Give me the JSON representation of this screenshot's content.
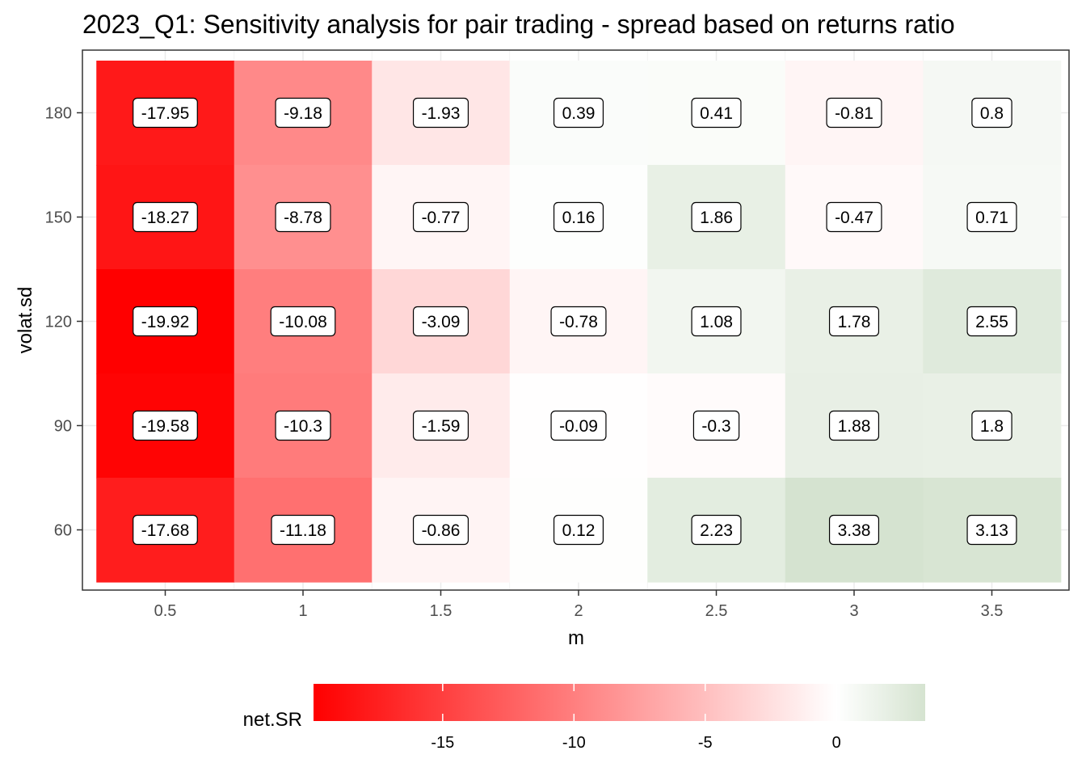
{
  "chart_data": {
    "type": "heatmap",
    "title": "2023_Q1: Sensitivity analysis for pair trading - spread based on returns ratio",
    "xlabel": "m",
    "ylabel": "volat.sd",
    "x": [
      "0.5",
      "1",
      "1.5",
      "2",
      "2.5",
      "3",
      "3.5"
    ],
    "y": [
      "60",
      "90",
      "120",
      "150",
      "180"
    ],
    "values": {
      "180": [
        -17.95,
        -9.18,
        -1.93,
        0.39,
        0.41,
        -0.81,
        0.8
      ],
      "150": [
        -18.27,
        -8.78,
        -0.77,
        0.16,
        1.86,
        -0.47,
        0.71
      ],
      "120": [
        -19.92,
        -10.08,
        -3.09,
        -0.78,
        1.08,
        1.78,
        2.55
      ],
      "90": [
        -19.58,
        -10.3,
        -1.59,
        -0.09,
        -0.3,
        1.88,
        1.8
      ],
      "60": [
        -17.68,
        -11.18,
        -0.86,
        0.12,
        2.23,
        3.38,
        3.13
      ]
    },
    "labels": {
      "180": [
        "-17.95",
        "-9.18",
        "-1.93",
        "0.39",
        "0.41",
        "-0.81",
        "0.8"
      ],
      "150": [
        "-18.27",
        "-8.78",
        "-0.77",
        "0.16",
        "1.86",
        "-0.47",
        "0.71"
      ],
      "120": [
        "-19.92",
        "-10.08",
        "-3.09",
        "-0.78",
        "1.08",
        "1.78",
        "2.55"
      ],
      "90": [
        "-19.58",
        "-10.3",
        "-1.59",
        "-0.09",
        "-0.3",
        "1.88",
        "1.8"
      ],
      "60": [
        "-17.68",
        "-11.18",
        "-0.86",
        "0.12",
        "2.23",
        "3.38",
        "3.13"
      ]
    },
    "legend": {
      "title": "net.SR",
      "position": "bottom",
      "ticks": [
        -15,
        -10,
        -5,
        0
      ],
      "tick_labels": [
        "-15",
        "-10",
        "-5",
        "0"
      ],
      "range": [
        -19.92,
        3.38
      ]
    },
    "colors": {
      "low": "#ff0000",
      "mid": "#ffffff",
      "high": "#d5e3d0"
    },
    "grid": true
  }
}
